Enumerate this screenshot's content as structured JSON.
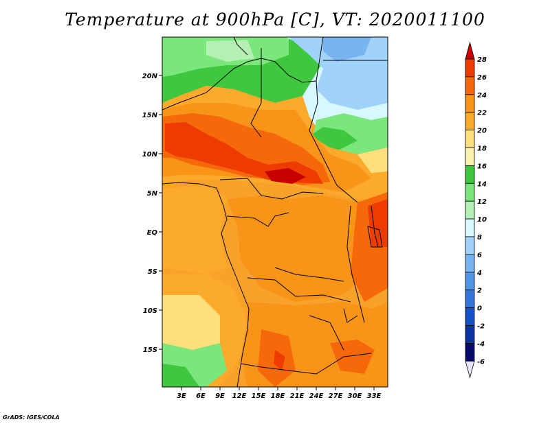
{
  "title": "Temperature at 900hPa [C], VT: 2020011100",
  "credit": "GrADS: IGES/COLA",
  "lat_labels": [
    "20N",
    "15N",
    "10N",
    "5N",
    "EQ",
    "5S",
    "10S",
    "15S"
  ],
  "lon_labels": [
    "3E",
    "6E",
    "9E",
    "12E",
    "15E",
    "18E",
    "21E",
    "24E",
    "27E",
    "30E",
    "33E"
  ],
  "colorbar": {
    "levels": [
      "28",
      "26",
      "24",
      "22",
      "20",
      "18",
      "16",
      "14",
      "12",
      "10",
      "8",
      "6",
      "4",
      "2",
      "0",
      "-2",
      "-4",
      "-6"
    ],
    "colors": [
      "#c80000",
      "#ee3c00",
      "#f5690b",
      "#f89418",
      "#fbaa2b",
      "#fde07d",
      "#fbf2ae",
      "#3fc83f",
      "#7be67b",
      "#b4f0b4",
      "#d7f8ff",
      "#a0d2fa",
      "#78b4f0",
      "#5096e6",
      "#3278dc",
      "#1450c8",
      "#0a32a0",
      "#050a6e"
    ]
  }
}
